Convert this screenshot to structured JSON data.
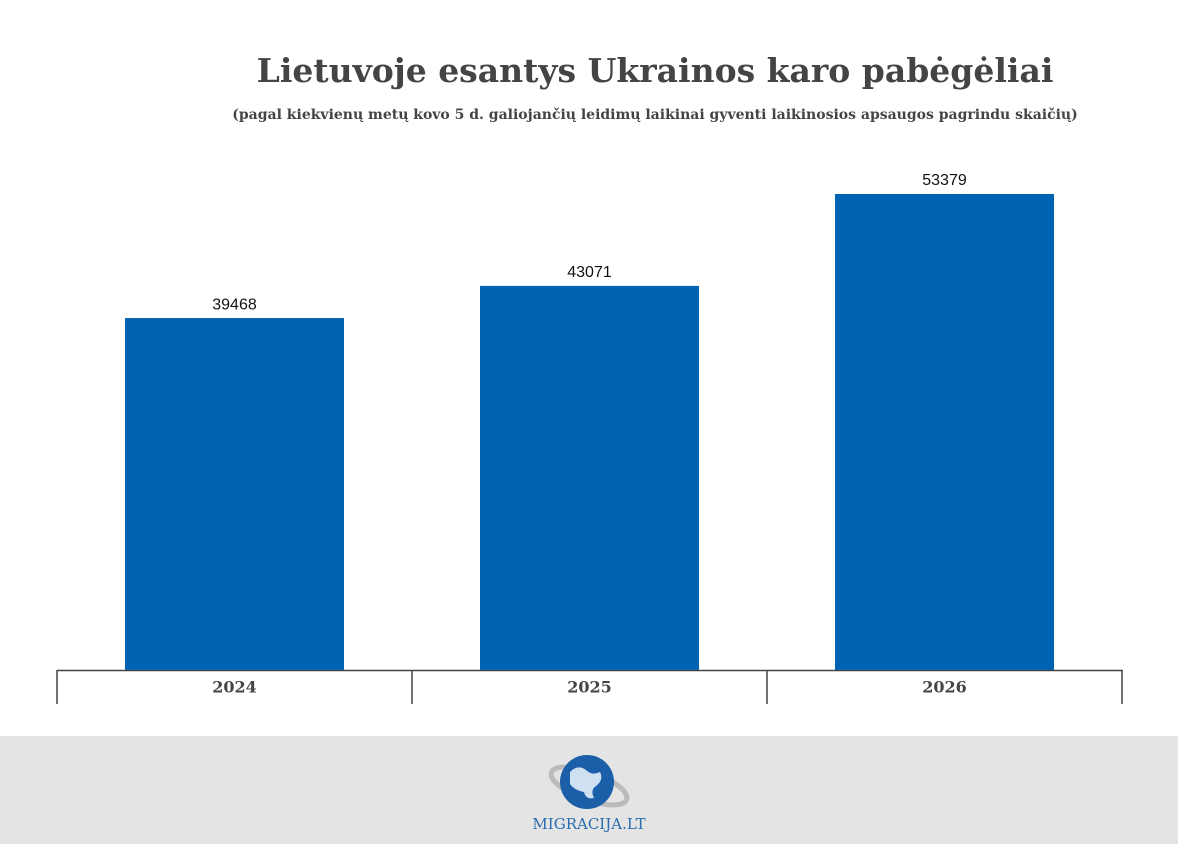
{
  "chart_data": {
    "type": "bar",
    "title": "Lietuvoje esantys Ukrainos karo pabėgėliai",
    "subtitle": "(pagal kiekvienų metų kovo 5 d. galiojančių leidimų laikinai gyventi laikinosios apsaugos pagrindu skaičių)",
    "categories": [
      "2024",
      "2025",
      "2026"
    ],
    "values": [
      39468,
      43071,
      53379
    ],
    "color": "#0063b1"
  },
  "footer": {
    "logo_text": "MIGRACIJA.LT"
  }
}
